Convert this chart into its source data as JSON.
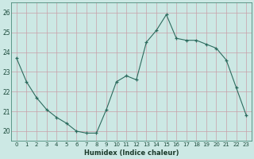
{
  "x": [
    0,
    1,
    2,
    3,
    4,
    5,
    6,
    7,
    8,
    9,
    10,
    11,
    12,
    13,
    14,
    15,
    16,
    17,
    18,
    19,
    20,
    21,
    22,
    23
  ],
  "y": [
    23.7,
    22.5,
    21.7,
    21.1,
    20.7,
    20.4,
    20.0,
    19.9,
    19.9,
    21.1,
    22.5,
    22.8,
    22.6,
    24.5,
    25.1,
    25.9,
    24.7,
    24.6,
    24.6,
    24.4,
    24.2,
    23.6,
    22.2,
    20.8
  ],
  "xlabel": "Humidex (Indice chaleur)",
  "ylim": [
    19.5,
    26.5
  ],
  "xlim": [
    -0.5,
    23.5
  ],
  "yticks": [
    20,
    21,
    22,
    23,
    24,
    25,
    26
  ],
  "xticks": [
    0,
    1,
    2,
    3,
    4,
    5,
    6,
    7,
    8,
    9,
    10,
    11,
    12,
    13,
    14,
    15,
    16,
    17,
    18,
    19,
    20,
    21,
    22,
    23
  ],
  "xtick_labels": [
    "0",
    "1",
    "2",
    "3",
    "4",
    "5",
    "6",
    "7",
    "8",
    "9",
    "10",
    "11",
    "12",
    "13",
    "14",
    "15",
    "16",
    "17",
    "18",
    "19",
    "20",
    "21",
    "22",
    "23"
  ],
  "line_color": "#2d6b5e",
  "marker": "+",
  "grid_color": "#c8a0a8",
  "axes_bg": "#cce8e4",
  "fig_bg": "#cce8e4"
}
